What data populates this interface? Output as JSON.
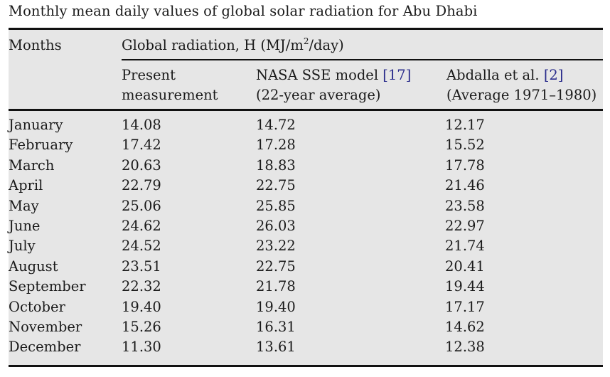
{
  "caption": "Monthly mean daily values of global solar radiation for Abu Dhabi",
  "header": {
    "months": "Months",
    "group": {
      "prefix": "Global radiation, H (MJ/m",
      "sup": "2",
      "suffix": "/day)"
    },
    "columns": [
      {
        "line1": "Present",
        "line2": "measurement",
        "ref": ""
      },
      {
        "line1": "NASA SSE model ",
        "ref": "[17]",
        "line2": "(22-year average)"
      },
      {
        "line1": "Abdalla et al. ",
        "ref": "[2]",
        "line2": "(Average 1971–1980)"
      }
    ]
  },
  "colors": {
    "reference_link": "#2b2d8c",
    "table_background": "#e6e6e6"
  },
  "chart_data": {
    "type": "table",
    "title": "Monthly mean daily values of global solar radiation for Abu Dhabi",
    "units": "MJ/m2/day",
    "columns": [
      "Months",
      "Present measurement",
      "NASA SSE model [17] (22-year average)",
      "Abdalla et al. [2] (Average 1971–1980)"
    ],
    "rows": [
      [
        "January",
        "14.08",
        "14.72",
        "12.17"
      ],
      [
        "February",
        "17.42",
        "17.28",
        "15.52"
      ],
      [
        "March",
        "20.63",
        "18.83",
        "17.78"
      ],
      [
        "April",
        "22.79",
        "22.75",
        "21.46"
      ],
      [
        "May",
        "25.06",
        "25.85",
        "23.58"
      ],
      [
        "June",
        "24.62",
        "26.03",
        "22.97"
      ],
      [
        "July",
        "24.52",
        "23.22",
        "21.74"
      ],
      [
        "August",
        "23.51",
        "22.75",
        "20.41"
      ],
      [
        "September",
        "22.32",
        "21.78",
        "19.44"
      ],
      [
        "October",
        "19.40",
        "19.40",
        "17.17"
      ],
      [
        "November",
        "15.26",
        "16.31",
        "14.62"
      ],
      [
        "December",
        "11.30",
        "13.61",
        "12.38"
      ]
    ]
  }
}
